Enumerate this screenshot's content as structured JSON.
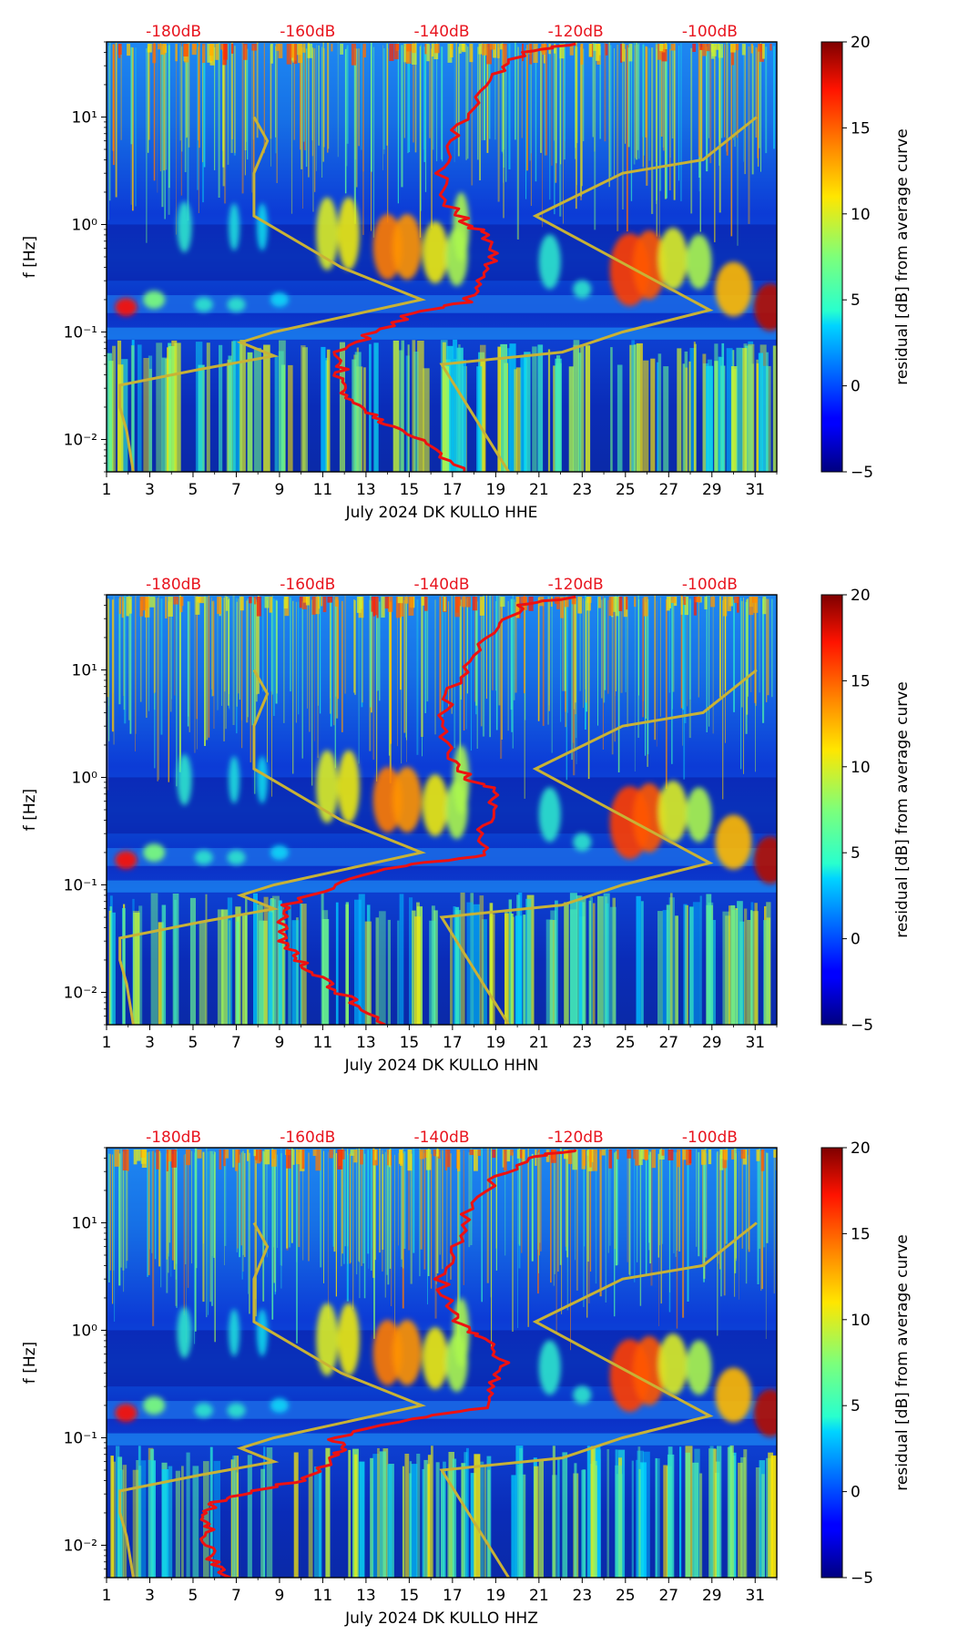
{
  "colors": {
    "db_label": "#e8141e",
    "psd_curve": "#ee1111",
    "noise_model": "#c8b236",
    "frame": "#000000"
  },
  "chart_data": [
    {
      "type": "heatmap",
      "channel": "HHE",
      "xlabel": "July 2024 DK KULLO  HHE",
      "ylabel": "f [Hz]",
      "x_ticks": [
        "1",
        "3",
        "5",
        "7",
        "9",
        "11",
        "13",
        "15",
        "17",
        "19",
        "21",
        "23",
        "25",
        "27",
        "29",
        "31"
      ],
      "x_range": [
        1,
        32
      ],
      "y_ticks": [
        "10⁻²",
        "10⁻¹",
        "10⁰",
        "10¹"
      ],
      "y_range_hz": [
        0.005,
        50
      ],
      "top_labels": [
        "-180dB",
        "-160dB",
        "-140dB",
        "-120dB",
        "-100dB"
      ],
      "top_label_positions_db": [
        -180,
        -160,
        -140,
        -120,
        -100
      ],
      "top_db_range": [
        -190,
        -90
      ],
      "colorbar": {
        "label": "residual [dB] from average curve",
        "ticks": [
          "20",
          "15",
          "10",
          "5",
          "0",
          "−5"
        ],
        "range": [
          -5,
          20
        ]
      },
      "psd_curve_db_vs_hz": [
        [
          -137,
          0.005
        ],
        [
          -141,
          0.008
        ],
        [
          -146,
          0.012
        ],
        [
          -150,
          0.016
        ],
        [
          -153,
          0.022
        ],
        [
          -155,
          0.03
        ],
        [
          -155,
          0.045
        ],
        [
          -155,
          0.065
        ],
        [
          -150,
          0.1
        ],
        [
          -144,
          0.15
        ],
        [
          -136,
          0.19
        ],
        [
          -134,
          0.3
        ],
        [
          -132,
          0.5
        ],
        [
          -133,
          0.8
        ],
        [
          -136,
          1
        ],
        [
          -139,
          1.5
        ],
        [
          -140,
          3
        ],
        [
          -139,
          6
        ],
        [
          -136,
          12
        ],
        [
          -132,
          25
        ],
        [
          -128,
          40
        ],
        [
          -120,
          48
        ]
      ]
    },
    {
      "type": "heatmap",
      "channel": "HHN",
      "xlabel": "July 2024 DK KULLO  HHN",
      "ylabel": "f [Hz]",
      "x_ticks": [
        "1",
        "3",
        "5",
        "7",
        "9",
        "11",
        "13",
        "15",
        "17",
        "19",
        "21",
        "23",
        "25",
        "27",
        "29",
        "31"
      ],
      "x_range": [
        1,
        32
      ],
      "y_ticks": [
        "10⁻²",
        "10⁻¹",
        "10⁰",
        "10¹"
      ],
      "y_range_hz": [
        0.005,
        50
      ],
      "top_labels": [
        "-180dB",
        "-160dB",
        "-140dB",
        "-120dB",
        "-100dB"
      ],
      "top_label_positions_db": [
        -180,
        -160,
        -140,
        -120,
        -100
      ],
      "top_db_range": [
        -190,
        -90
      ],
      "colorbar": {
        "label": "residual [dB] from average curve",
        "ticks": [
          "20",
          "15",
          "10",
          "5",
          "0",
          "−5"
        ],
        "range": [
          -5,
          20
        ]
      },
      "psd_curve_db_vs_hz": [
        [
          -149,
          0.005
        ],
        [
          -153,
          0.008
        ],
        [
          -157,
          0.012
        ],
        [
          -160,
          0.016
        ],
        [
          -162,
          0.022
        ],
        [
          -164,
          0.03
        ],
        [
          -164,
          0.045
        ],
        [
          -163,
          0.065
        ],
        [
          -156,
          0.1
        ],
        [
          -146,
          0.15
        ],
        [
          -134,
          0.19
        ],
        [
          -134,
          0.3
        ],
        [
          -132,
          0.5
        ],
        [
          -133,
          0.8
        ],
        [
          -136,
          1
        ],
        [
          -139,
          1.5
        ],
        [
          -140,
          3
        ],
        [
          -139,
          6
        ],
        [
          -136,
          12
        ],
        [
          -132,
          25
        ],
        [
          -128,
          40
        ],
        [
          -120,
          48
        ]
      ]
    },
    {
      "type": "heatmap",
      "channel": "HHZ",
      "xlabel": "July 2024 DK KULLO  HHZ",
      "ylabel": "f [Hz]",
      "x_ticks": [
        "1",
        "3",
        "5",
        "7",
        "9",
        "11",
        "13",
        "15",
        "17",
        "19",
        "21",
        "23",
        "25",
        "27",
        "29",
        "31"
      ],
      "x_range": [
        1,
        32
      ],
      "y_ticks": [
        "10⁻²",
        "10⁻¹",
        "10⁰",
        "10¹"
      ],
      "y_range_hz": [
        0.005,
        50
      ],
      "top_labels": [
        "-180dB",
        "-160dB",
        "-140dB",
        "-120dB",
        "-100dB"
      ],
      "top_label_positions_db": [
        -180,
        -160,
        -140,
        -120,
        -100
      ],
      "top_db_range": [
        -190,
        -90
      ],
      "colorbar": {
        "label": "residual [dB] from average curve",
        "ticks": [
          "20",
          "15",
          "10",
          "5",
          "0",
          "−5"
        ],
        "range": [
          -5,
          20
        ]
      },
      "psd_curve_db_vs_hz": [
        [
          -172,
          0.005
        ],
        [
          -174,
          0.007
        ],
        [
          -175,
          0.01
        ],
        [
          -175,
          0.015
        ],
        [
          -175,
          0.02
        ],
        [
          -174,
          0.025
        ],
        [
          -168,
          0.032
        ],
        [
          -160,
          0.042
        ],
        [
          -156,
          0.065
        ],
        [
          -155,
          0.08
        ],
        [
          -156,
          0.1
        ],
        [
          -145,
          0.15
        ],
        [
          -133,
          0.19
        ],
        [
          -132,
          0.3
        ],
        [
          -131,
          0.5
        ],
        [
          -133,
          0.8
        ],
        [
          -136,
          1
        ],
        [
          -139,
          1.5
        ],
        [
          -140,
          3
        ],
        [
          -138,
          6
        ],
        [
          -136,
          12
        ],
        [
          -132,
          25
        ],
        [
          -127,
          40
        ],
        [
          -120,
          48
        ]
      ]
    }
  ],
  "noise_model_db_vs_hz": {
    "low_model": [
      [
        -186,
        0.005
      ],
      [
        -187,
        0.012
      ],
      [
        -188,
        0.02
      ],
      [
        -188,
        0.032
      ],
      [
        -176,
        0.045
      ],
      [
        -165,
        0.06
      ],
      [
        -170,
        0.08
      ],
      [
        -165,
        0.1
      ],
      [
        -143,
        0.2
      ],
      [
        -155,
        0.4
      ],
      [
        -168,
        1.2
      ],
      [
        -168,
        3
      ],
      [
        -166,
        6
      ],
      [
        -168,
        10
      ]
    ],
    "high_model": [
      [
        -130,
        0.005
      ],
      [
        -140,
        0.05
      ],
      [
        -122,
        0.065
      ],
      [
        -113,
        0.1
      ],
      [
        -100,
        0.16
      ],
      [
        -126,
        1.2
      ],
      [
        -113,
        3
      ],
      [
        -101,
        4
      ],
      [
        -93,
        10
      ]
    ]
  }
}
